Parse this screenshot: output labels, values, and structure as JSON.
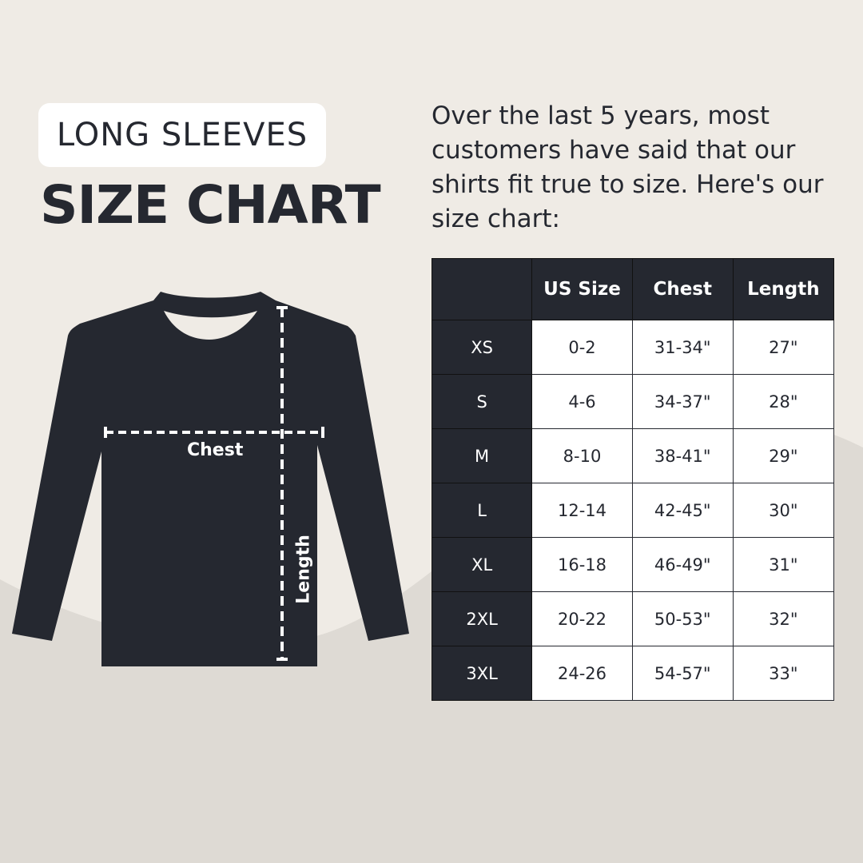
{
  "badge": "LONG SLEEVES",
  "title": "SIZE CHART",
  "intro": "Over the last 5 years, most customers have said that our shirts fit true to size. Here's our size chart:",
  "diagram": {
    "chest_label": "Chest",
    "length_label": "Length"
  },
  "colors": {
    "background": "#efebe5",
    "wave": "#dedad4",
    "dark": "#252830",
    "white": "#ffffff"
  },
  "table": {
    "headers": [
      "",
      "US Size",
      "Chest",
      "Length"
    ],
    "rows": [
      [
        "XS",
        "0-2",
        "31-34\"",
        "27\""
      ],
      [
        "S",
        "4-6",
        "34-37\"",
        "28\""
      ],
      [
        "M",
        "8-10",
        "38-41\"",
        "29\""
      ],
      [
        "L",
        "12-14",
        "42-45\"",
        "30\""
      ],
      [
        "XL",
        "16-18",
        "46-49\"",
        "31\""
      ],
      [
        "2XL",
        "20-22",
        "50-53\"",
        "32\""
      ],
      [
        "3XL",
        "24-26",
        "54-57\"",
        "33\""
      ]
    ]
  }
}
